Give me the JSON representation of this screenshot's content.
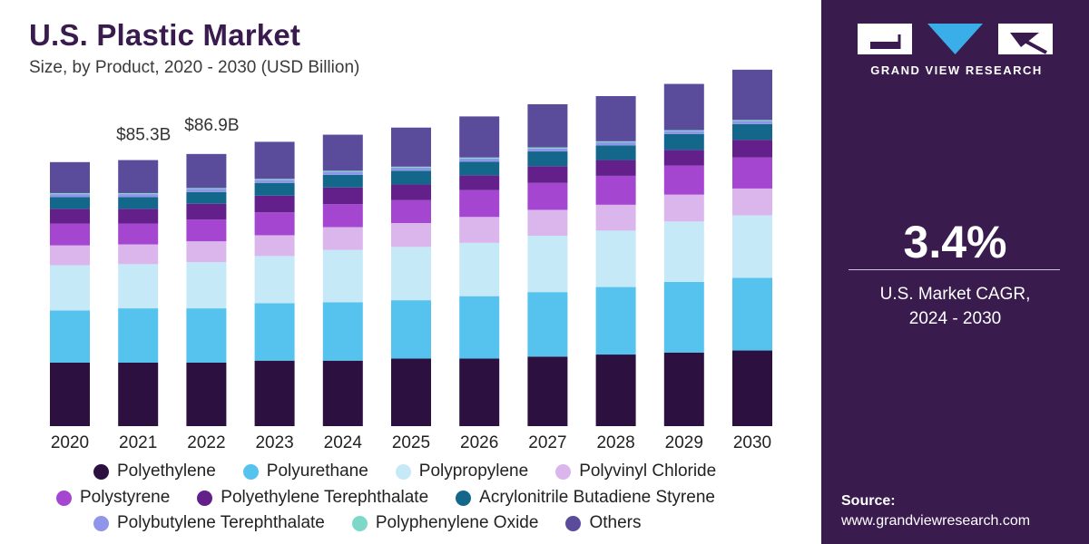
{
  "header": {
    "title": "U.S. Plastic Market",
    "subtitle": "Size, by Product, 2020 - 2030 (USD Billion)"
  },
  "sidebar": {
    "brand": "GRAND VIEW RESEARCH",
    "cagr_value": "3.4%",
    "cagr_label_line1": "U.S. Market CAGR,",
    "cagr_label_line2": "2024 - 2030",
    "source_label": "Source:",
    "source_url": "www.grandviewresearch.com"
  },
  "colors": {
    "brand": "#3a1b4e",
    "Polyethylene": "#2b1040",
    "Polyurethane": "#55c3ee",
    "Polypropylene": "#c6e9f8",
    "Polyvinyl Chloride": "#dbb6ec",
    "Polystyrene": "#a446d0",
    "Polyethylene Terephthalate": "#63208a",
    "Acrylonitrile Butadiene Styrene": "#13678a",
    "Polybutylene Terephthalate": "#8f95e8",
    "Polyphenylene Oxide": "#7dd8c8",
    "Others": "#5a4c9b"
  },
  "chart_data": {
    "type": "bar",
    "stacked": true,
    "categories": [
      "2020",
      "2021",
      "2022",
      "2023",
      "2024",
      "2025",
      "2026",
      "2027",
      "2028",
      "2029",
      "2030"
    ],
    "series": [
      {
        "name": "Polyethylene",
        "values": [
          25.0,
          25.0,
          25.0,
          25.8,
          25.8,
          26.6,
          26.6,
          27.4,
          28.2,
          29.0,
          29.8
        ]
      },
      {
        "name": "Polyurethane",
        "values": [
          20.6,
          21.4,
          21.4,
          22.6,
          23.0,
          23.0,
          24.6,
          25.4,
          26.6,
          27.8,
          28.6
        ]
      },
      {
        "name": "Polypropylene",
        "values": [
          17.8,
          17.4,
          18.2,
          18.6,
          20.6,
          21.0,
          21.0,
          22.2,
          22.2,
          23.8,
          24.6
        ]
      },
      {
        "name": "Polyvinyl Chloride",
        "values": [
          7.8,
          7.8,
          8.2,
          8.2,
          9.0,
          9.4,
          10.2,
          10.2,
          10.2,
          10.6,
          10.6
        ]
      },
      {
        "name": "Polystyrene",
        "values": [
          8.6,
          8.2,
          8.6,
          9.0,
          9.0,
          9.0,
          10.6,
          10.6,
          11.4,
          11.4,
          12.2
        ]
      },
      {
        "name": "Polyethylene Terephthalate",
        "values": [
          5.8,
          5.8,
          6.2,
          6.6,
          6.6,
          6.2,
          5.8,
          6.6,
          6.2,
          6.2,
          7.0
        ]
      },
      {
        "name": "Acrylonitrile Butadiene Styrene",
        "values": [
          4.6,
          4.6,
          4.6,
          5.0,
          5.0,
          5.4,
          5.4,
          5.8,
          5.8,
          6.2,
          6.2
        ]
      },
      {
        "name": "Polybutylene Terephthalate",
        "values": [
          1.2,
          1.2,
          1.2,
          1.2,
          1.2,
          1.2,
          1.2,
          1.2,
          1.2,
          1.2,
          1.2
        ]
      },
      {
        "name": "Polyphenylene Oxide",
        "values": [
          0.4,
          0.4,
          0.4,
          0.4,
          0.4,
          0.4,
          0.4,
          0.4,
          0.4,
          0.4,
          0.4
        ]
      },
      {
        "name": "Others",
        "values": [
          12.2,
          13.0,
          13.4,
          14.6,
          14.2,
          15.4,
          16.2,
          17.0,
          17.8,
          18.2,
          19.8
        ]
      }
    ],
    "annotations": [
      {
        "category": "2021",
        "label": "$85.3B"
      },
      {
        "category": "2022",
        "label": "$86.9B"
      }
    ],
    "ylim": [
      0,
      150
    ],
    "grid": false,
    "legend_position": "bottom"
  }
}
